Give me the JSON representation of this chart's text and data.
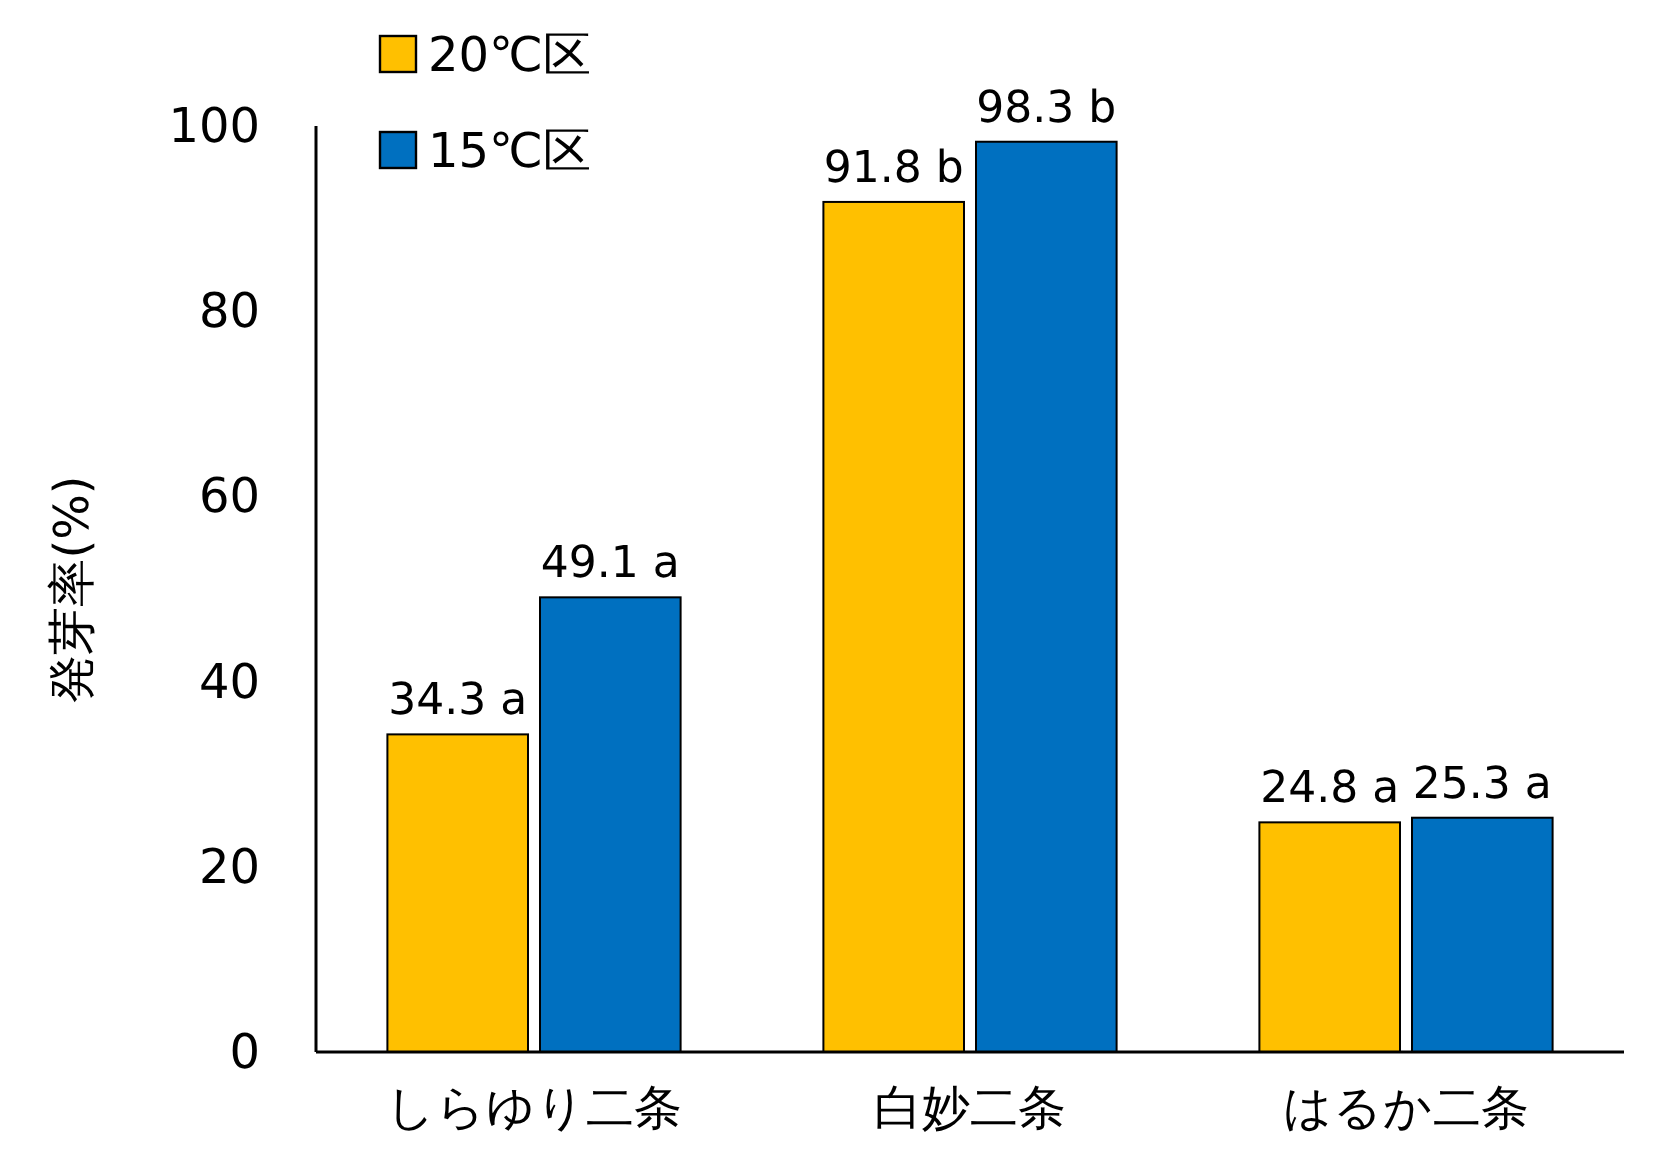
{
  "chart_data": {
    "type": "bar",
    "ylabel": "発芽率(%)",
    "categories": [
      "しらゆり二条",
      "白妙二条",
      "はるか二条"
    ],
    "series": [
      {
        "name": "20℃区",
        "color": "#ffc000",
        "values": [
          34.3,
          91.8,
          24.8
        ],
        "value_labels": [
          "34.3 a",
          "91.8 b",
          "24.8 a"
        ]
      },
      {
        "name": "15℃区",
        "color": "#0070c0",
        "values": [
          49.1,
          98.3,
          25.3
        ],
        "value_labels": [
          "49.1 a",
          "98.3 b",
          "25.3 a"
        ]
      }
    ],
    "ylim": [
      0,
      100
    ],
    "yticks": [
      0,
      20,
      40,
      60,
      80,
      100
    ],
    "grid": false,
    "legend": "top left"
  }
}
